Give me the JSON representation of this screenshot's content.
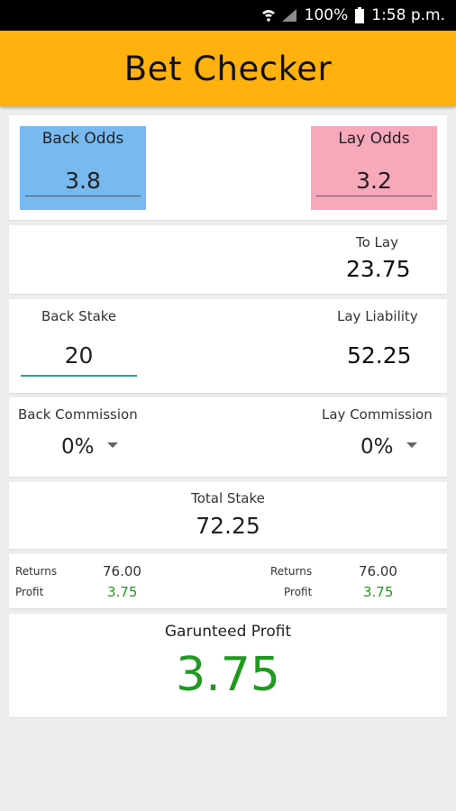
{
  "status_bar": {
    "battery": "100%",
    "time": "1:58 p.m."
  },
  "app": {
    "title": "Bet Checker"
  },
  "odds": {
    "back_label": "Back Odds",
    "back_value": "3.8",
    "lay_label": "Lay Odds",
    "lay_value": "3.2",
    "back_color": "#78b9ef",
    "lay_color": "#f7a8ba"
  },
  "to_lay": {
    "label": "To Lay",
    "value": "23.75"
  },
  "stake": {
    "back_label": "Back Stake",
    "back_value": "20",
    "lay_label": "Lay Liability",
    "lay_value": "52.25"
  },
  "commission": {
    "back_label": "Back Commission",
    "back_value": "0%",
    "lay_label": "Lay Commission",
    "lay_value": "0%"
  },
  "total": {
    "label": "Total Stake",
    "value": "72.25"
  },
  "returns": {
    "back": {
      "returns_label": "Returns",
      "returns_value": "76.00",
      "profit_label": "Profit",
      "profit_value": "3.75"
    },
    "lay": {
      "returns_label": "Returns",
      "returns_value": "76.00",
      "profit_label": "Profit",
      "profit_value": "3.75"
    }
  },
  "guaranteed": {
    "label": "Garunteed Profit",
    "value": "3.75",
    "color": "#1f9a1f"
  },
  "icons": [
    "wifi-icon",
    "signal-icon",
    "battery-icon",
    "dropdown-caret-icon"
  ]
}
